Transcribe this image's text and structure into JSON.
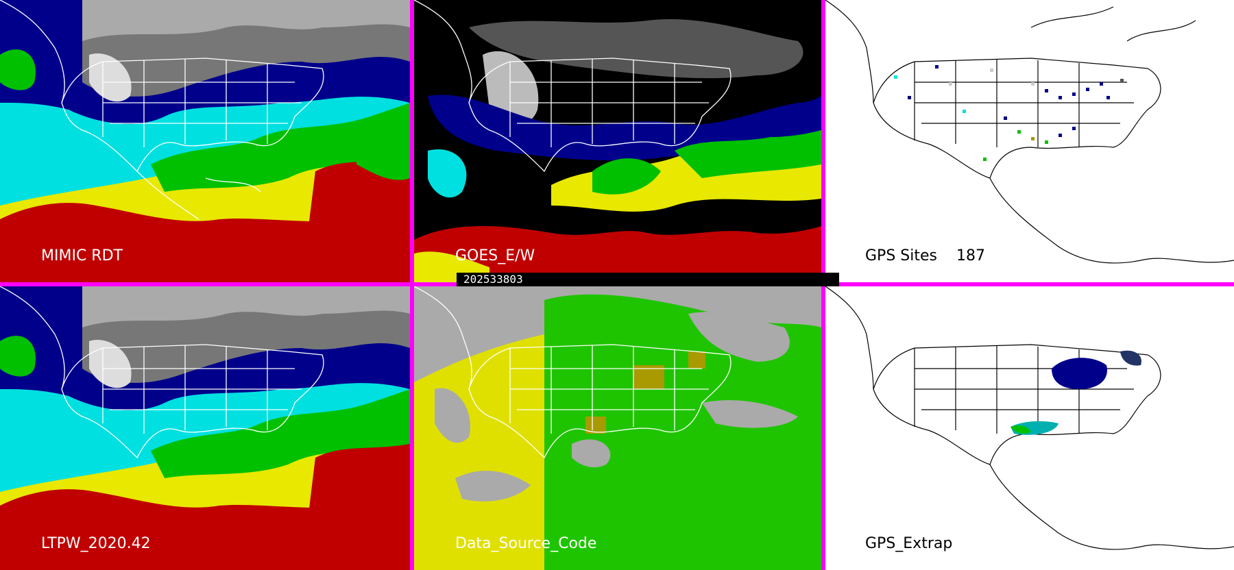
{
  "panels": [
    {
      "id": "mimic-rdt",
      "label": "MIMIC RDT"
    },
    {
      "id": "goes-ew",
      "label": "GOES_E/W"
    },
    {
      "id": "gps-sites",
      "label": "GPS Sites",
      "count": "187"
    },
    {
      "id": "ltpw",
      "label": "LTPW_2020.42"
    },
    {
      "id": "data-source",
      "label": "Data_Source_Code"
    },
    {
      "id": "gps-extrap",
      "label": "GPS_Extrap"
    }
  ],
  "timestamp": "202533803",
  "colors": {
    "separator": "#ff00ff",
    "very_dry": "#ffffff",
    "dry": "#888888",
    "moist_low": "#00008b",
    "moist_mid": "#00e0e0",
    "green": "#00c000",
    "yellow": "#e8e800",
    "red": "#c00000",
    "missing": "#000000",
    "source_gray": "#aaaaaa",
    "source_green": "#1fc400",
    "source_yellow": "#e0e000",
    "source_olive": "#a89a00"
  }
}
